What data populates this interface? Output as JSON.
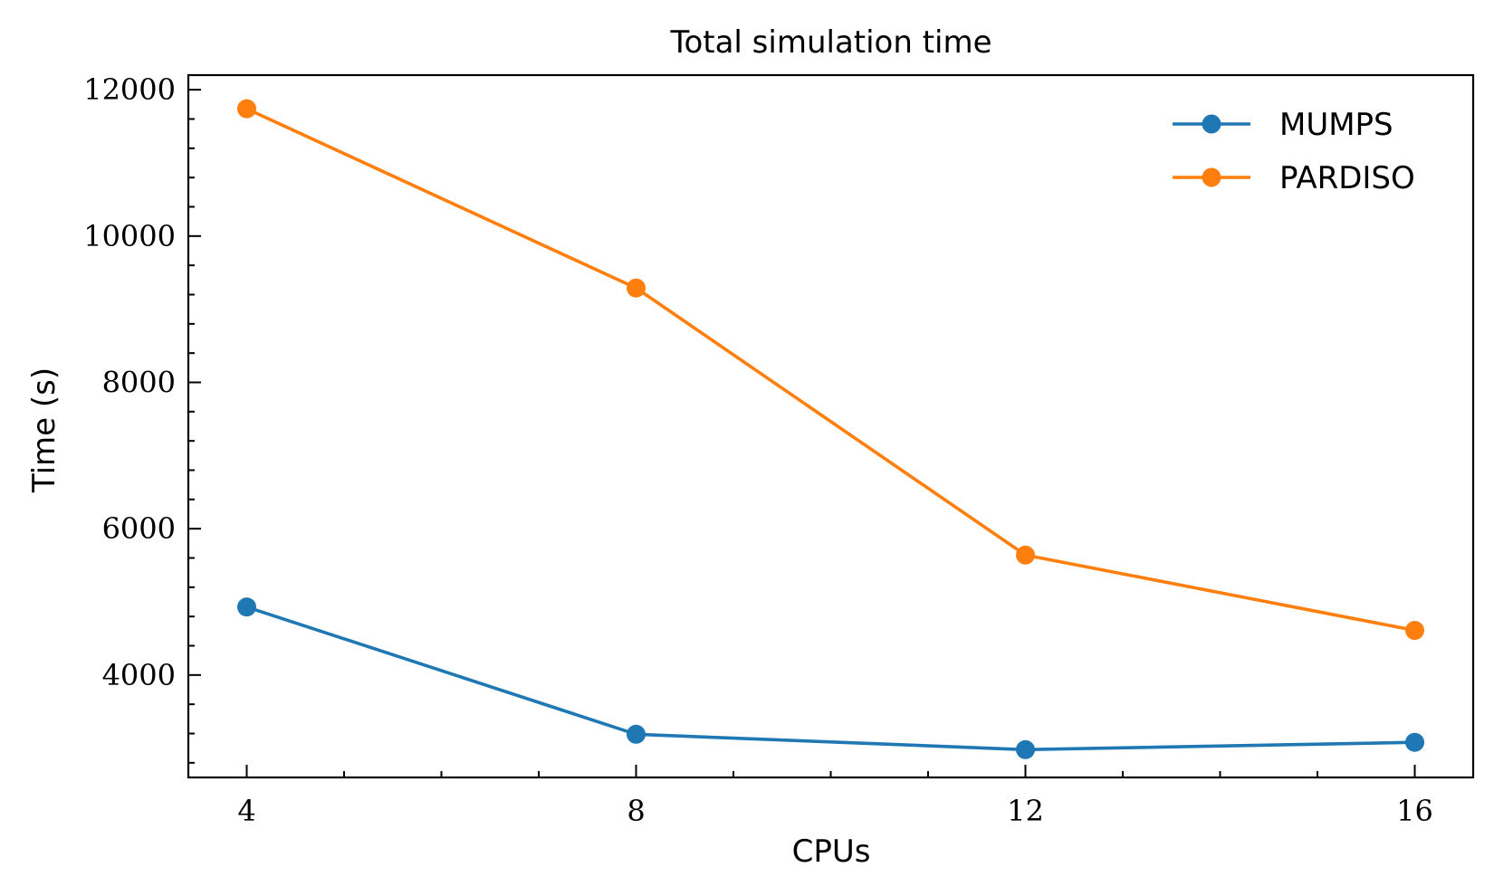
{
  "chart_data": {
    "type": "line",
    "title": "Total simulation time",
    "xlabel": "CPUs",
    "ylabel": "Time (s)",
    "x": [
      4,
      8,
      12,
      16
    ],
    "xticks": [
      "4",
      "8",
      "12",
      "16"
    ],
    "yticks": [
      "4000",
      "6000",
      "8000",
      "10000",
      "12000"
    ],
    "xlim": [
      3.4,
      16.6
    ],
    "ylim": [
      2600,
      12200
    ],
    "grid": false,
    "legend_position": "top-right",
    "series": [
      {
        "name": "MUMPS",
        "color": "#1f77b4",
        "values": [
          4930,
          3190,
          2980,
          3080
        ]
      },
      {
        "name": "PARDISO",
        "color": "#ff7f0e",
        "values": [
          11740,
          9290,
          5640,
          4610
        ]
      }
    ]
  }
}
